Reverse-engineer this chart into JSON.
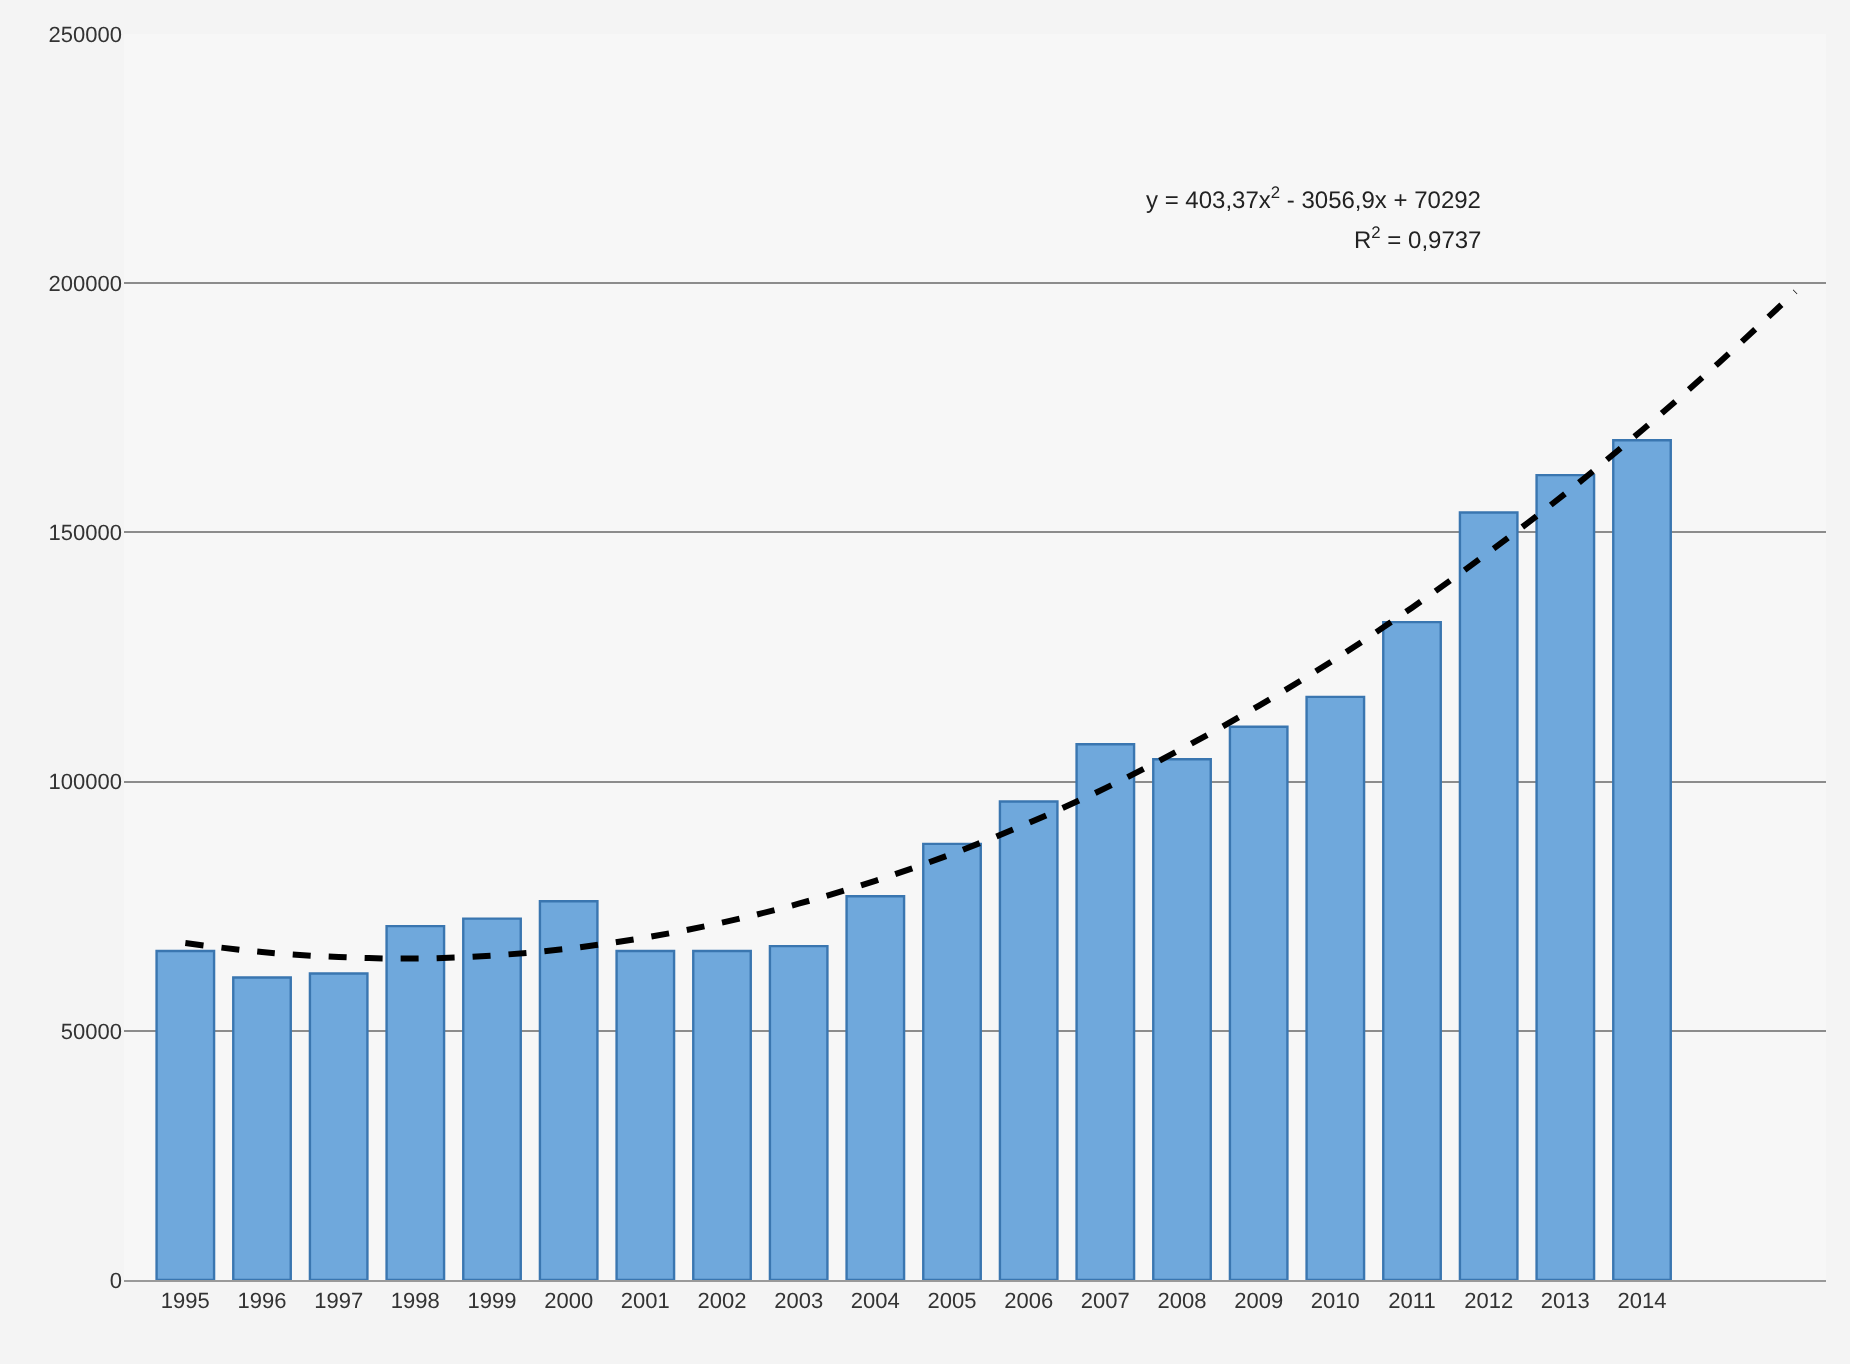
{
  "chart_data": {
    "type": "bar",
    "x": [
      1995,
      1996,
      1997,
      1998,
      1999,
      2000,
      2001,
      2002,
      2003,
      2004,
      2005,
      2006,
      2007,
      2008,
      2009,
      2010,
      2011,
      2012,
      2013,
      2014
    ],
    "series": [
      {
        "color": "#6fa8dc",
        "values": [
          66000,
          60700,
          61500,
          71000,
          72500,
          76000,
          66000,
          66000,
          67000,
          77000,
          87500,
          96000,
          107500,
          104500,
          111000,
          117000,
          132000,
          154000,
          161500,
          168500
        ]
      },
      {
        "type": "line",
        "color": "#000000",
        "line_style": "dashed",
        "marker": "none",
        "x": [
          1995,
          1996,
          1997,
          1998,
          1999,
          2000,
          2001,
          2002,
          2003,
          2004,
          2005,
          2006,
          2007,
          2008,
          2009,
          2010,
          2011,
          2012,
          2013,
          2014,
          2015,
          2016
        ],
        "values": [
          67600,
          65800,
          64800,
          64500,
          65100,
          66500,
          68700,
          71700,
          75500,
          80100,
          85500,
          91700,
          98700,
          106600,
          115200,
          124600,
          134900,
          146000,
          157800,
          170500,
          184000,
          198300
        ]
      }
    ],
    "xlim": [
      1994.2,
      2016.4
    ],
    "xticks": [
      1995,
      1996,
      1997,
      1998,
      1999,
      2000,
      2001,
      2002,
      2003,
      2004,
      2005,
      2006,
      2007,
      2008,
      2009,
      2010,
      2011,
      2012,
      2013,
      2014
    ],
    "ylim": [
      0,
      250000
    ],
    "yticks": [
      0,
      50000,
      100000,
      150000,
      200000,
      250000
    ],
    "grid": "y",
    "annotations": [
      "y = 403,37x$^{2}$ - 3056,9x + 70292",
      "R$^{2}$ = 0,9737"
    ]
  }
}
